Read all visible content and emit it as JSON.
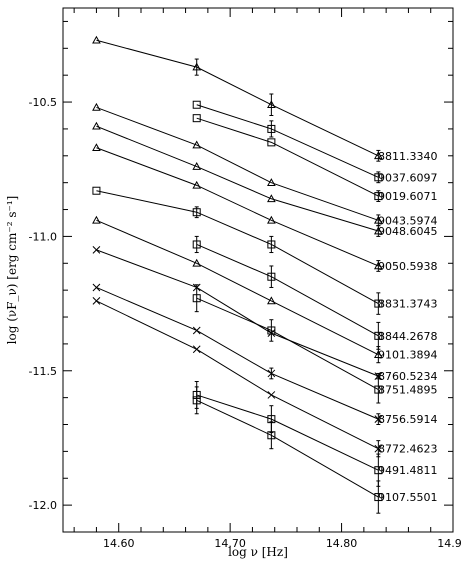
{
  "chart_data": {
    "type": "line",
    "xlabel": "log ν [Hz]",
    "ylabel": "log (νF_ν) [erg cm⁻² s⁻¹]",
    "xlim": [
      14.55,
      14.9
    ],
    "ylim": [
      -12.1,
      -10.15
    ],
    "xticks": [
      14.6,
      14.7,
      14.8,
      14.9
    ],
    "xtick_labels": [
      "14.60",
      "14.70",
      "14.80",
      "14.90"
    ],
    "yticks": [
      -10.5,
      -11.0,
      -11.5,
      -12.0
    ],
    "ytick_labels": [
      "-10.5",
      "-11.0",
      "-11.5",
      "-12.0"
    ],
    "grid": false,
    "legend": "right-side labels",
    "series": [
      {
        "name": "8811.3340",
        "marker": "triangle",
        "x": [
          14.58,
          14.67,
          14.737,
          14.833
        ],
        "y": [
          -10.27,
          -10.37,
          -10.51,
          -10.7
        ],
        "err": [
          0,
          0.03,
          0.04,
          0.02
        ]
      },
      {
        "name": "9037.6097",
        "marker": "square",
        "x": [
          14.67,
          14.737,
          14.833
        ],
        "y": [
          -10.51,
          -10.6,
          -10.78
        ],
        "err": [
          0,
          0.03,
          0.02
        ]
      },
      {
        "name": "9019.6071",
        "marker": "square",
        "x": [
          14.67,
          14.737,
          14.833
        ],
        "y": [
          -10.56,
          -10.65,
          -10.85
        ],
        "err": [
          0,
          0,
          0.02
        ]
      },
      {
        "name": "9043.5974",
        "marker": "triangle",
        "x": [
          14.58,
          14.67,
          14.737,
          14.833
        ],
        "y": [
          -10.52,
          -10.66,
          -10.8,
          -10.94
        ],
        "err": [
          0,
          0,
          0,
          0.02
        ]
      },
      {
        "name": "9048.6045",
        "marker": "triangle",
        "x": [
          14.58,
          14.67,
          14.737,
          14.833
        ],
        "y": [
          -10.59,
          -10.74,
          -10.86,
          -10.98
        ],
        "err": [
          0,
          0,
          0,
          0.02
        ]
      },
      {
        "name": "9050.5938",
        "marker": "triangle",
        "x": [
          14.58,
          14.67,
          14.737,
          14.833
        ],
        "y": [
          -10.67,
          -10.81,
          -10.94,
          -11.11
        ],
        "err": [
          0,
          0,
          0,
          0.02
        ]
      },
      {
        "name": "8831.3743",
        "marker": "square",
        "x": [
          14.58,
          14.67,
          14.737,
          14.833
        ],
        "y": [
          -10.83,
          -10.91,
          -11.03,
          -11.25
        ],
        "err": [
          0,
          0.02,
          0.03,
          0.04
        ]
      },
      {
        "name": "8844.2678",
        "marker": "square",
        "x": [
          14.67,
          14.737,
          14.833
        ],
        "y": [
          -11.03,
          -11.15,
          -11.37
        ],
        "err": [
          0.03,
          0.04,
          0.05
        ]
      },
      {
        "name": "9101.3894",
        "marker": "triangle",
        "x": [
          14.58,
          14.67,
          14.737,
          14.833
        ],
        "y": [
          -10.94,
          -11.1,
          -11.24,
          -11.44
        ],
        "err": [
          0,
          0,
          0,
          0.03
        ]
      },
      {
        "name": "8760.5234",
        "marker": "cross",
        "x": [
          14.58,
          14.67,
          14.737,
          14.833
        ],
        "y": [
          -11.05,
          -11.19,
          -11.36,
          -11.52
        ],
        "err": [
          0,
          0,
          0,
          0.01
        ]
      },
      {
        "name": "8751.4895",
        "marker": "square",
        "x": [
          14.67,
          14.737,
          14.833
        ],
        "y": [
          -11.23,
          -11.35,
          -11.57
        ],
        "err": [
          0.05,
          0.04,
          0.05
        ]
      },
      {
        "name": "8756.5914",
        "marker": "cross",
        "x": [
          14.58,
          14.67,
          14.737,
          14.833
        ],
        "y": [
          -11.19,
          -11.35,
          -11.51,
          -11.68
        ],
        "err": [
          0,
          0,
          0.02,
          0.02
        ]
      },
      {
        "name": "8772.4623",
        "marker": "cross",
        "x": [
          14.58,
          14.67,
          14.737,
          14.833
        ],
        "y": [
          -11.24,
          -11.42,
          -11.59,
          -11.79
        ],
        "err": [
          0,
          0,
          0,
          0.03
        ]
      },
      {
        "name": "9491.4811",
        "marker": "square",
        "x": [
          14.67,
          14.737,
          14.833
        ],
        "y": [
          -11.59,
          -11.68,
          -11.87
        ],
        "err": [
          0.05,
          0.05,
          0.06
        ]
      },
      {
        "name": "9107.5501",
        "marker": "square",
        "x": [
          14.67,
          14.737,
          14.833
        ],
        "y": [
          -11.61,
          -11.74,
          -11.97
        ],
        "err": [
          0.05,
          0.05,
          0.06
        ]
      }
    ]
  }
}
